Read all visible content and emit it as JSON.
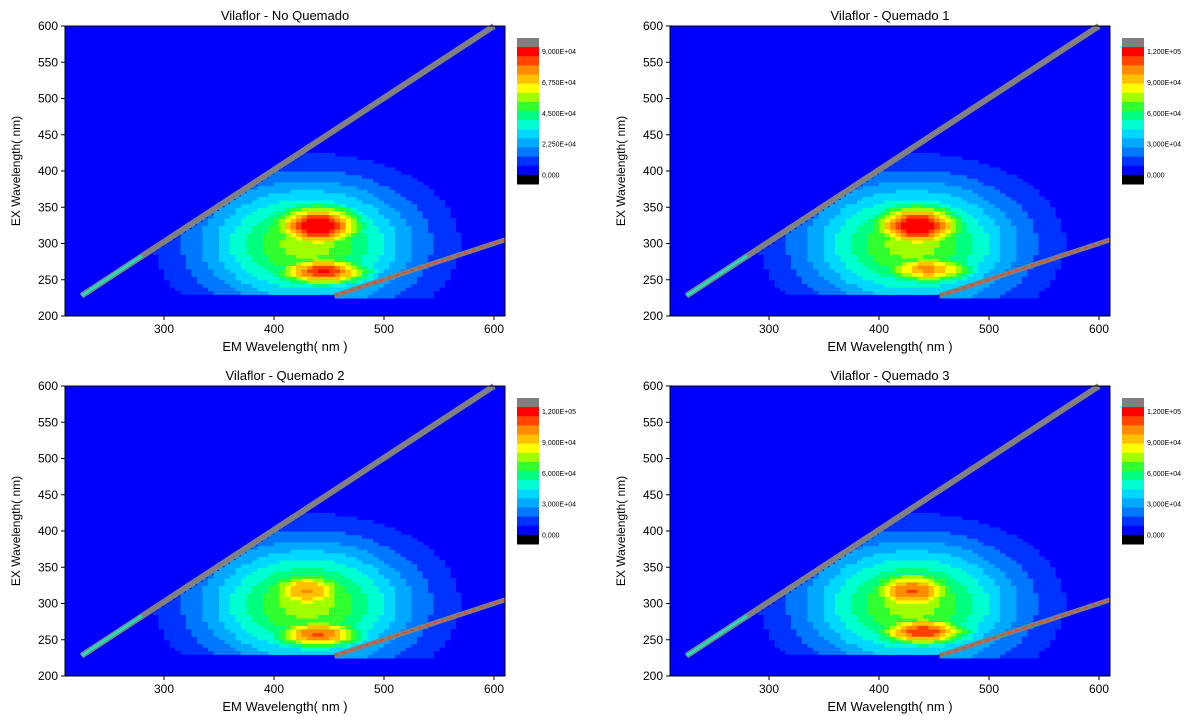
{
  "chart_data": [
    {
      "type": "heatmap",
      "title": "Vilaflor - No Quemado",
      "xlabel": "EM Wavelength( nm )",
      "ylabel": "EX Wavelength( nm)",
      "xlim": [
        210,
        610
      ],
      "ylim": [
        200,
        600
      ],
      "x_ticks": [
        "300",
        "400",
        "500",
        "600"
      ],
      "y_ticks": [
        "200",
        "250",
        "300",
        "350",
        "400",
        "450",
        "500",
        "550",
        "600"
      ],
      "colorbar_labels": [
        "9,000E+04",
        "6,750E+04",
        "4,500E+04",
        "2,250E+04",
        "0,000"
      ],
      "colorbar_max": 90000,
      "peaks": [
        {
          "em": 440,
          "ex": 325,
          "intensity": 88000
        },
        {
          "em": 445,
          "ex": 262,
          "intensity": 80000
        }
      ]
    },
    {
      "type": "heatmap",
      "title": "Vilaflor - Quemado 1",
      "xlabel": "EM Wavelength( nm )",
      "ylabel": "EX Wavelength( nm)",
      "xlim": [
        210,
        610
      ],
      "ylim": [
        200,
        600
      ],
      "x_ticks": [
        "300",
        "400",
        "500",
        "600"
      ],
      "y_ticks": [
        "200",
        "250",
        "300",
        "350",
        "400",
        "450",
        "500",
        "550",
        "600"
      ],
      "colorbar_labels": [
        "1,200E+05",
        "9,000E+04",
        "6,000E+04",
        "3,000E+04",
        "0,000"
      ],
      "colorbar_max": 120000,
      "peaks": [
        {
          "em": 435,
          "ex": 325,
          "intensity": 118000
        },
        {
          "em": 445,
          "ex": 265,
          "intensity": 92000
        }
      ]
    },
    {
      "type": "heatmap",
      "title": "Vilaflor - Quemado 2",
      "xlabel": "EM Wavelength( nm )",
      "ylabel": "EX Wavelength( nm)",
      "xlim": [
        210,
        610
      ],
      "ylim": [
        200,
        600
      ],
      "x_ticks": [
        "300",
        "400",
        "500",
        "600"
      ],
      "y_ticks": [
        "200",
        "250",
        "300",
        "350",
        "400",
        "450",
        "500",
        "550",
        "600"
      ],
      "colorbar_labels": [
        "1,200E+05",
        "9,000E+04",
        "6,000E+04",
        "3,000E+04",
        "0,000"
      ],
      "colorbar_max": 120000,
      "peaks": [
        {
          "em": 430,
          "ex": 318,
          "intensity": 90000
        },
        {
          "em": 440,
          "ex": 258,
          "intensity": 100000
        }
      ]
    },
    {
      "type": "heatmap",
      "title": "Vilaflor - Quemado 3",
      "xlabel": "EM Wavelength( nm )",
      "ylabel": "EX Wavelength( nm)",
      "xlim": [
        210,
        610
      ],
      "ylim": [
        200,
        600
      ],
      "x_ticks": [
        "300",
        "400",
        "500",
        "600"
      ],
      "y_ticks": [
        "200",
        "250",
        "300",
        "350",
        "400",
        "450",
        "500",
        "550",
        "600"
      ],
      "colorbar_labels": [
        "1,200E+05",
        "9,000E+04",
        "6,000E+04",
        "3,000E+04",
        "0,000"
      ],
      "colorbar_max": 120000,
      "peaks": [
        {
          "em": 430,
          "ex": 318,
          "intensity": 98000
        },
        {
          "em": 440,
          "ex": 262,
          "intensity": 105000
        }
      ]
    }
  ]
}
